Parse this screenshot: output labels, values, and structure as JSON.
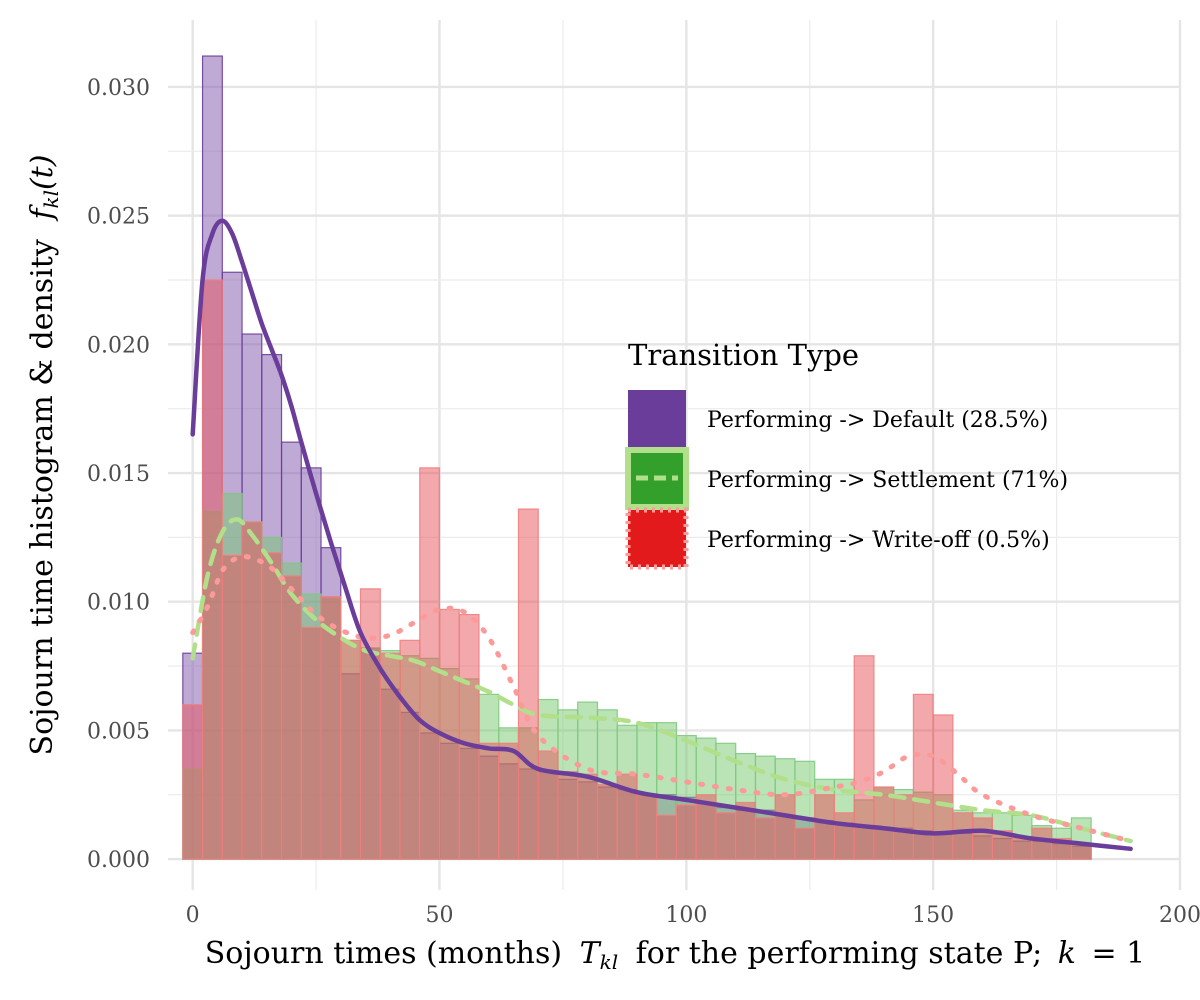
{
  "chart_data": {
    "type": "histogram+density",
    "x_axis": {
      "range": [
        -5,
        200
      ],
      "ticks": [
        0,
        50,
        100,
        150,
        200
      ],
      "tick_labels": [
        "0",
        "50",
        "100",
        "150",
        "200"
      ],
      "label_text": "Sojourn times (months)",
      "label_symbol": "T",
      "label_subscript": "kl",
      "label_rest": "for the performing state P;",
      "label_k": "k",
      "label_eq": "= 1"
    },
    "y_axis": {
      "range": [
        -0.0012,
        0.0326
      ],
      "ticks": [
        0,
        0.005,
        0.01,
        0.015,
        0.02,
        0.025,
        0.03
      ],
      "tick_labels": [
        "0.000",
        "0.005",
        "0.010",
        "0.015",
        "0.020",
        "0.025",
        "0.030"
      ],
      "label_text": "Sojourn time histogram & density",
      "label_f": "f",
      "label_subscript": "kl",
      "label_t": "(t)"
    },
    "grid": true,
    "bin_width": 4,
    "bins_start": -2,
    "legend": {
      "title": "Transition Type",
      "position": "center-right",
      "entries": [
        "Performing -> Default (28.5%)",
        "Performing -> Settlement (71%)",
        "Performing -> Write-off (0.5%)"
      ]
    },
    "series": [
      {
        "name": "Performing -> Default (28.5%)",
        "color": "#6a3d9a",
        "line_style": "solid",
        "histogram": [
          0.008,
          0.0312,
          0.0228,
          0.0204,
          0.0196,
          0.0162,
          0.0152,
          0.0121,
          0.0072,
          0.0082,
          0.0066,
          0.0057,
          0.0049,
          0.0045,
          0.0043,
          0.004,
          0.0037,
          0.0035,
          0.0034,
          0.0031,
          0.003,
          0.0028,
          0.0027,
          0.0025,
          0.0025,
          0.0024,
          0.0022,
          0.002,
          0.0019,
          0.0019,
          0.0017,
          0.0016,
          0.0015,
          0.0014,
          0.0013,
          0.0012,
          0.0012,
          0.0011,
          0.001,
          0.001,
          0.0009,
          0.0008,
          0.0007,
          0.0007,
          0.0006,
          0.0005
        ],
        "density": {
          "x": [
            0,
            2,
            4,
            6,
            8,
            10,
            12,
            14,
            16,
            18,
            20,
            22,
            25,
            28,
            31,
            34,
            38,
            42,
            46,
            50,
            55,
            60,
            65,
            70,
            80,
            90,
            100,
            110,
            120,
            130,
            140,
            150,
            160,
            170,
            180,
            190
          ],
          "y": [
            0.0165,
            0.0225,
            0.0243,
            0.0248,
            0.0243,
            0.0232,
            0.022,
            0.0208,
            0.0198,
            0.0188,
            0.0176,
            0.0162,
            0.0142,
            0.0123,
            0.0105,
            0.0088,
            0.0074,
            0.0063,
            0.0054,
            0.0049,
            0.0045,
            0.0043,
            0.0042,
            0.0035,
            0.0032,
            0.0026,
            0.0023,
            0.002,
            0.0017,
            0.0014,
            0.0012,
            0.001,
            0.0011,
            0.0008,
            0.0006,
            0.0004
          ]
        }
      },
      {
        "name": "Performing -> Settlement (71%)",
        "color": "#33a02c",
        "line_color": "#b2df8a",
        "line_style": "dashed",
        "histogram": [
          0.0035,
          0.0135,
          0.0142,
          0.0131,
          0.0125,
          0.0115,
          0.0103,
          0.0101,
          0.0085,
          0.0082,
          0.0081,
          0.0079,
          0.0078,
          0.0074,
          0.007,
          0.0064,
          0.0051,
          0.0051,
          0.0062,
          0.0058,
          0.0061,
          0.0058,
          0.0052,
          0.0053,
          0.0053,
          0.0048,
          0.0047,
          0.0045,
          0.0041,
          0.004,
          0.0039,
          0.0038,
          0.0031,
          0.0031,
          0.0023,
          0.0028,
          0.0027,
          0.0026,
          0.0025,
          0.0019,
          0.0018,
          0.0018,
          0.0017,
          0.0013,
          0.0012,
          0.0016
        ],
        "density": {
          "x": [
            0,
            3,
            6,
            9,
            12,
            16,
            20,
            25,
            30,
            35,
            40,
            45,
            50,
            55,
            60,
            65,
            70,
            80,
            90,
            100,
            110,
            120,
            130,
            140,
            150,
            160,
            170,
            180,
            190
          ],
          "y": [
            0.0078,
            0.011,
            0.0127,
            0.0132,
            0.0126,
            0.0115,
            0.0103,
            0.0093,
            0.0086,
            0.0081,
            0.0079,
            0.0077,
            0.0073,
            0.0069,
            0.0065,
            0.006,
            0.0056,
            0.0055,
            0.0053,
            0.0046,
            0.0038,
            0.0031,
            0.0027,
            0.0025,
            0.0022,
            0.0019,
            0.0017,
            0.0012,
            0.0007
          ]
        }
      },
      {
        "name": "Performing -> Write-off (0.5%)",
        "color": "#e31a1c",
        "line_color": "#fb9a99",
        "line_style": "dotted",
        "histogram": [
          0.006,
          0.0225,
          0.0118,
          0.0131,
          0.0119,
          0.011,
          0.009,
          0.0102,
          0.0085,
          0.0105,
          0.008,
          0.0085,
          0.0152,
          0.0097,
          0.0095,
          0.0045,
          0.0045,
          0.0136,
          0.0042,
          0.0034,
          0.0033,
          0.0029,
          0.0033,
          0.0025,
          0.0017,
          0.0021,
          0.0025,
          0.0018,
          0.0022,
          0.0016,
          0.0025,
          0.0012,
          0.0025,
          0.0018,
          0.0079,
          0.0028,
          0.0025,
          0.0064,
          0.0056,
          0.0018,
          0.0016,
          0.0011,
          0.0008,
          0.0012,
          0.0008,
          0.0006
        ],
        "density": {
          "x": [
            0,
            3,
            6,
            9,
            12,
            16,
            20,
            25,
            30,
            35,
            40,
            45,
            50,
            55,
            60,
            65,
            70,
            80,
            90,
            100,
            110,
            120,
            130,
            135,
            140,
            145,
            150,
            155,
            160,
            170,
            180,
            190
          ],
          "y": [
            0.0088,
            0.0098,
            0.0112,
            0.0117,
            0.0117,
            0.0113,
            0.0105,
            0.0095,
            0.0089,
            0.0086,
            0.0087,
            0.0092,
            0.0097,
            0.0096,
            0.0086,
            0.0067,
            0.0048,
            0.0035,
            0.0033,
            0.003,
            0.0027,
            0.0025,
            0.0028,
            0.003,
            0.0034,
            0.004,
            0.004,
            0.0033,
            0.0025,
            0.0017,
            0.0012,
            0.0007
          ]
        }
      }
    ]
  }
}
